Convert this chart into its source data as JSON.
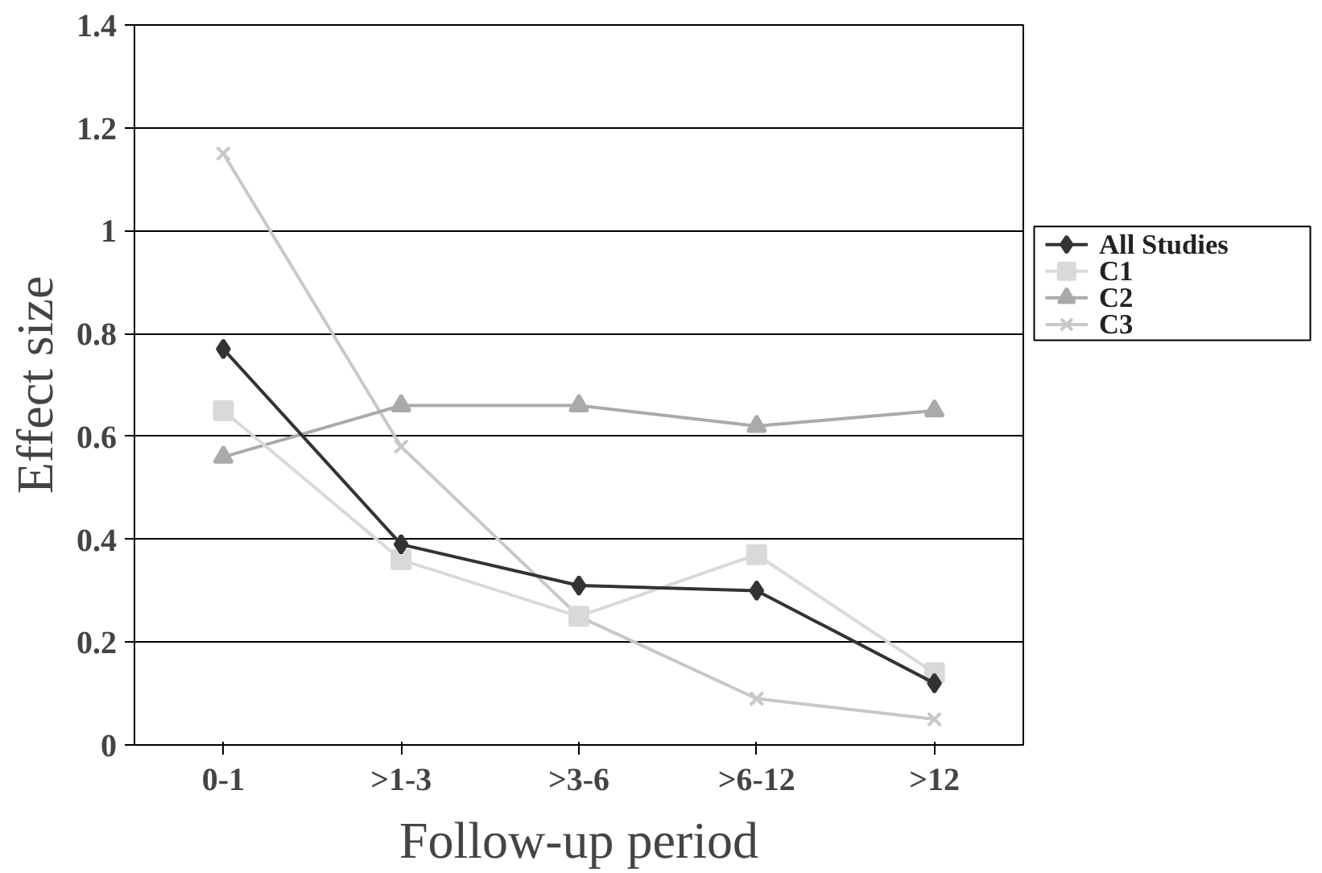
{
  "chart_data": {
    "type": "line",
    "xlabel": "Follow-up period",
    "ylabel": "Effect size",
    "categories": [
      "0-1",
      ">1-3",
      ">3-6",
      ">6-12",
      ">12"
    ],
    "series": [
      {
        "name": "All Studies",
        "color": "#333333",
        "marker": "diamond",
        "values": [
          0.77,
          0.39,
          0.31,
          0.3,
          0.12
        ]
      },
      {
        "name": "C1",
        "color": "#d9d9d9",
        "marker": "square",
        "values": [
          0.65,
          0.36,
          0.25,
          0.37,
          0.14
        ]
      },
      {
        "name": "C2",
        "color": "#aaaaaa",
        "marker": "triangle",
        "values": [
          0.56,
          0.66,
          0.66,
          0.62,
          0.65
        ]
      },
      {
        "name": "C3",
        "color": "#c8c8c8",
        "marker": "cross",
        "values": [
          1.15,
          0.58,
          0.25,
          0.09,
          0.05
        ]
      }
    ],
    "ylim": [
      0,
      1.4
    ],
    "yticks": [
      0,
      0.2,
      0.4,
      0.6,
      0.8,
      1,
      1.2,
      1.4
    ],
    "grid": "y",
    "legend": "right"
  }
}
